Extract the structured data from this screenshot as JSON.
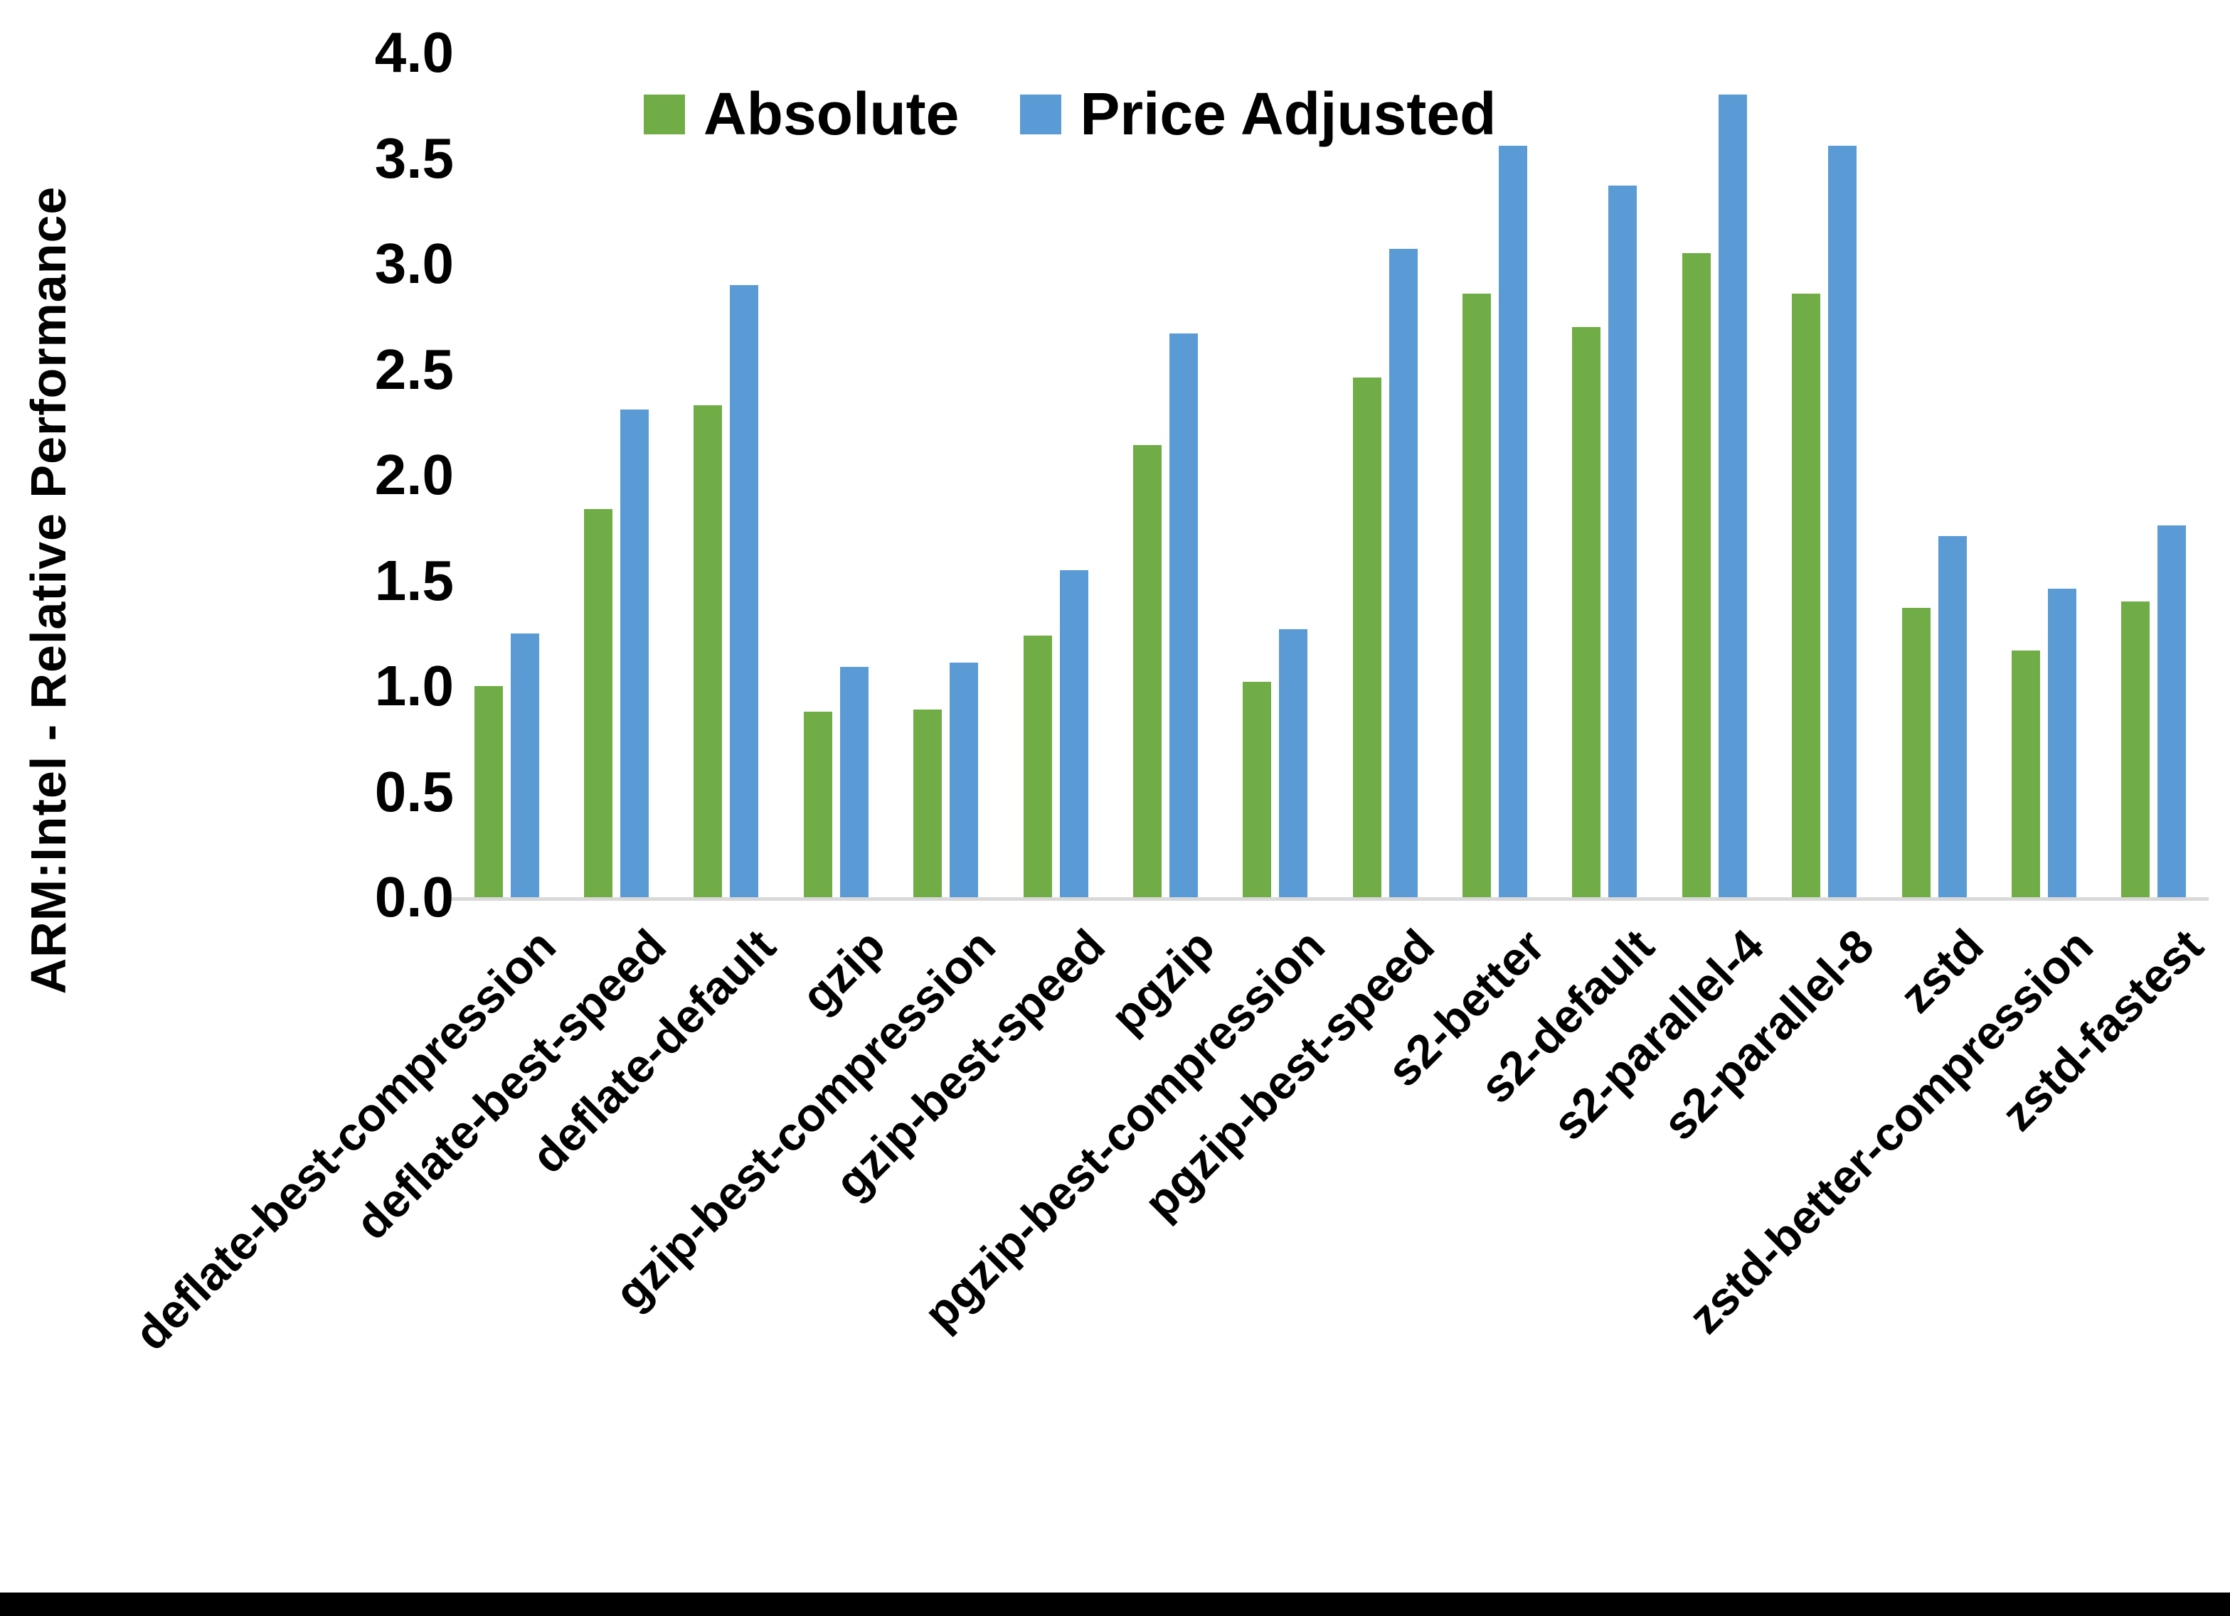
{
  "figure": {
    "background_color": "#ffffff",
    "baseline_color": "#d9d9d9",
    "bottom_border_color": "#000000"
  },
  "chart_data": {
    "type": "bar",
    "title": "",
    "xlabel": "",
    "ylabel": "ARM:Intel - Relative Performance",
    "ylim": [
      0,
      4
    ],
    "ytick_step": 0.5,
    "ytick_labels": [
      "0.0",
      "0.5",
      "1.0",
      "1.5",
      "2.0",
      "2.5",
      "3.0",
      "3.5",
      "4.0"
    ],
    "grid": false,
    "legend_position": "top-center-inside",
    "categories": [
      "deflate-best-compression",
      "deflate-best-speed",
      "deflate-default",
      "gzip",
      "gzip-best-compression",
      "gzip-best-speed",
      "pgzip",
      "pgzip-best-compression",
      "pgzip-best-speed",
      "s2-better",
      "s2-default",
      "s2-parallel-4",
      "s2-parallel-8",
      "zstd",
      "zstd-better-compression",
      "zstd-fastest"
    ],
    "series": [
      {
        "name": "Absolute",
        "color": "#70AD47",
        "values": [
          1.0,
          1.84,
          2.33,
          0.88,
          0.89,
          1.24,
          2.14,
          1.02,
          2.46,
          2.86,
          2.7,
          3.05,
          2.86,
          1.37,
          1.17,
          1.4
        ]
      },
      {
        "name": "Price Adjusted",
        "color": "#5B9BD5",
        "values": [
          1.25,
          2.31,
          2.9,
          1.09,
          1.11,
          1.55,
          2.67,
          1.27,
          3.07,
          3.56,
          3.37,
          3.8,
          3.56,
          1.71,
          1.46,
          1.76
        ]
      }
    ]
  }
}
